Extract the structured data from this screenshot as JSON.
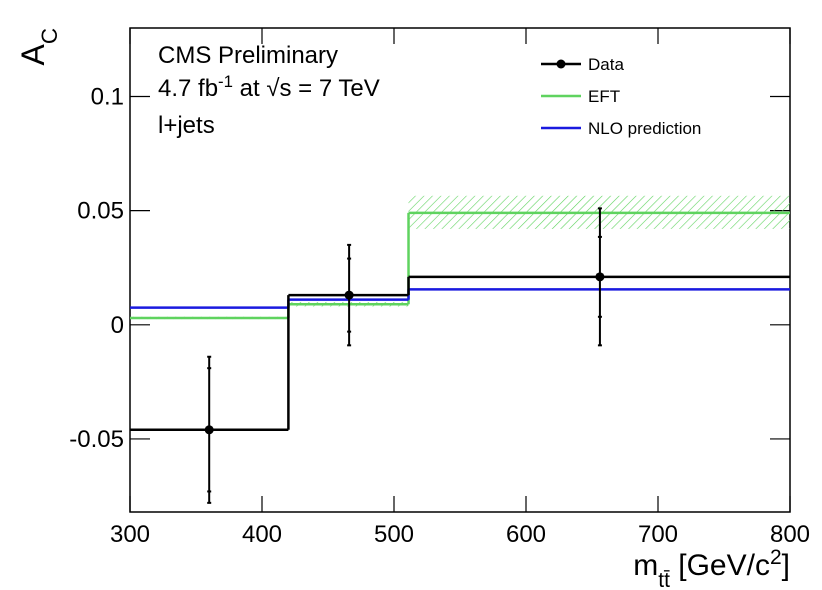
{
  "chart_data": {
    "type": "step",
    "y_label": [
      {
        "text": "A"
      },
      {
        "text": "C",
        "sub": true
      }
    ],
    "x_label": [
      {
        "text": "m"
      },
      {
        "text": "tt̄",
        "sub": true
      },
      {
        "text": " [GeV/c"
      },
      {
        "text": "2",
        "sup": true
      },
      {
        "text": "]"
      }
    ],
    "annotations": [
      [
        {
          "text": "CMS Preliminary"
        }
      ],
      [
        {
          "text": "4.7 fb"
        },
        {
          "text": "-1",
          "sup": true
        },
        {
          "text": " at √s = 7 TeV"
        }
      ],
      [
        {
          "text": "l+jets"
        }
      ]
    ],
    "x_edges": [
      300,
      420,
      511,
      800
    ],
    "xlim": [
      300,
      800
    ],
    "xticks": [
      300,
      400,
      500,
      600,
      700,
      800
    ],
    "ylim": [
      -0.082,
      0.13
    ],
    "yticks": [
      -0.05,
      0,
      0.05,
      0.1
    ],
    "series": [
      {
        "name": "Data",
        "color": "#000000",
        "values": [
          -0.046,
          0.013,
          0.021
        ],
        "x": [
          360,
          466,
          656
        ],
        "stat_errors": [
          0.027,
          0.016,
          0.0175
        ],
        "total_errors": [
          0.032,
          0.022,
          0.03
        ]
      },
      {
        "name": "EFT",
        "color": "#5fd35f",
        "values": [
          0.003,
          0.009,
          0.049
        ],
        "band_low": [
          0.0025,
          0.008,
          0.042
        ],
        "band_high": [
          0.0035,
          0.01,
          0.0565
        ]
      },
      {
        "name": "NLO prediction",
        "color": "#1a1adf",
        "values": [
          0.0075,
          0.011,
          0.0155
        ]
      }
    ]
  }
}
